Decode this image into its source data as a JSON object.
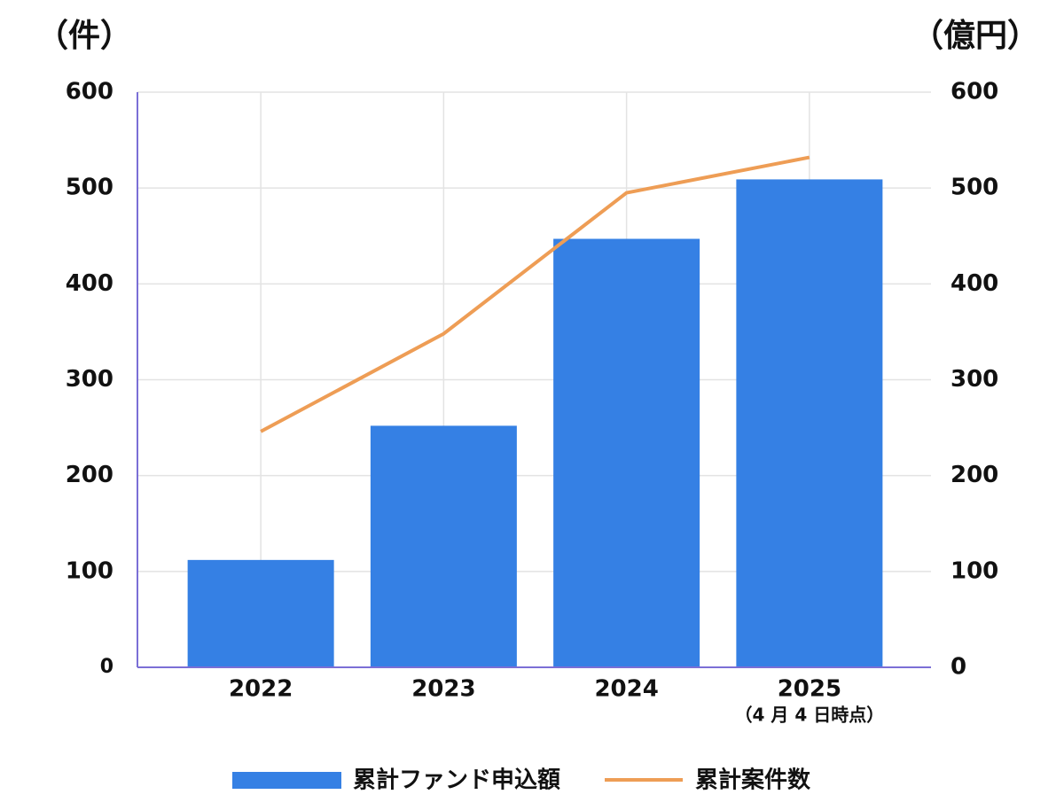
{
  "chart_data": {
    "type": "bar-line",
    "y_label": "（件）",
    "y2_label": "（億円）",
    "categories": [
      "2022",
      "2023",
      "2024",
      "2025"
    ],
    "category_note": "（4 月 4 日時点）",
    "series": [
      {
        "name": "累計ファンド申込額",
        "type": "bar",
        "axis": "y2",
        "color": "#3580e4",
        "values": [
          112,
          252,
          447,
          509
        ]
      },
      {
        "name": "累計案件数",
        "type": "line",
        "axis": "y",
        "color": "#ee9d55",
        "values": [
          246,
          348,
          495,
          532
        ]
      }
    ],
    "ylim": [
      0,
      600
    ],
    "yticks": [
      0,
      100,
      200,
      300,
      400,
      500,
      600
    ],
    "y2lim": [
      0,
      600
    ],
    "y2ticks": [
      0,
      100,
      200,
      300,
      400,
      500,
      600
    ],
    "grid": true,
    "legend": "bottom"
  }
}
